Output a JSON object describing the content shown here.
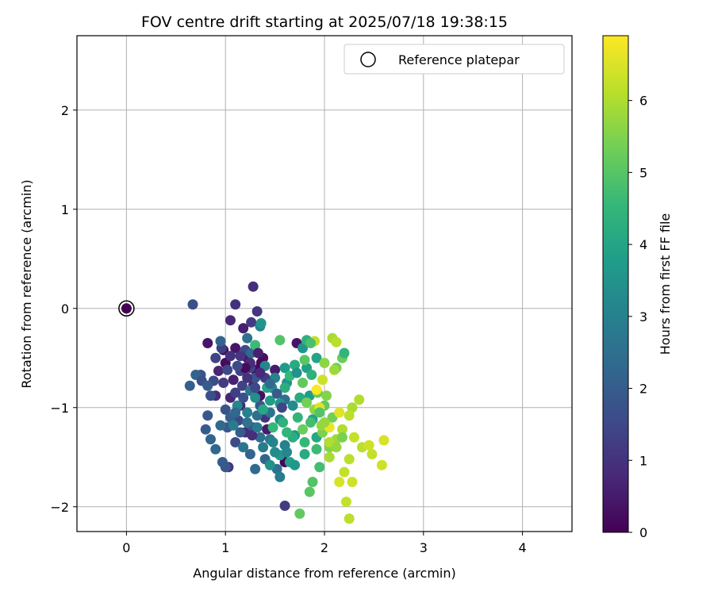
{
  "chart_data": {
    "type": "scatter",
    "title": "FOV centre drift starting at 2025/07/18 19:38:15",
    "xlabel": "Angular distance from reference (arcmin)",
    "ylabel": "Rotation from reference (arcmin)",
    "xlim": [
      -0.5,
      4.5
    ],
    "ylim": [
      -2.25,
      2.75
    ],
    "xticks": [
      0,
      1,
      2,
      3,
      4
    ],
    "xtick_labels": [
      "0",
      "1",
      "2",
      "3",
      "4"
    ],
    "yticks": [
      -2,
      -1,
      0,
      1,
      2
    ],
    "ytick_labels": [
      "−2",
      "−1",
      "0",
      "1",
      "2"
    ],
    "grid": true,
    "legend": {
      "position": "upper right",
      "entries": [
        "Reference platepar"
      ]
    },
    "reference_point": {
      "label": "Reference platepar",
      "x": 0,
      "y": 0
    },
    "colorbar": {
      "label": "Hours from first FF file",
      "colormap": "viridis",
      "range": [
        0,
        6.9
      ],
      "ticks": [
        0,
        1,
        2,
        3,
        4,
        5,
        6
      ],
      "tick_labels": [
        "0",
        "1",
        "2",
        "3",
        "4",
        "5",
        "6"
      ]
    },
    "colormap_stops": [
      "#440154",
      "#482878",
      "#3e4989",
      "#31688e",
      "#26828e",
      "#1f9e89",
      "#35b779",
      "#6ece58",
      "#b5de2b",
      "#fde725"
    ],
    "points": [
      [
        0.0,
        0.0,
        0.0
      ],
      [
        0.98,
        -0.42,
        0.3
      ],
      [
        1.1,
        -0.4,
        0.4
      ],
      [
        1.22,
        -0.5,
        0.5
      ],
      [
        1.3,
        -0.62,
        0.2
      ],
      [
        1.08,
        -0.72,
        0.6
      ],
      [
        1.28,
        -0.78,
        0.7
      ],
      [
        1.35,
        -0.88,
        0.3
      ],
      [
        1.5,
        -0.62,
        0.5
      ],
      [
        1.6,
        -1.55,
        0.1
      ],
      [
        1.72,
        -0.35,
        0.4
      ],
      [
        1.05,
        -0.12,
        0.8
      ],
      [
        1.28,
        0.22,
        0.9
      ],
      [
        1.1,
        0.04,
        1.0
      ],
      [
        1.32,
        -0.03,
        1.1
      ],
      [
        1.18,
        -0.2,
        0.6
      ],
      [
        1.26,
        -0.14,
        1.2
      ],
      [
        0.82,
        -0.35,
        0.4
      ],
      [
        1.0,
        -0.55,
        0.2
      ],
      [
        0.93,
        -0.63,
        0.7
      ],
      [
        1.15,
        -0.98,
        0.8
      ],
      [
        1.03,
        -1.6,
        1.1
      ],
      [
        1.6,
        -1.99,
        1.2
      ],
      [
        1.2,
        -1.25,
        0.9
      ],
      [
        1.4,
        -1.1,
        1.0
      ],
      [
        0.9,
        -0.88,
        0.9
      ],
      [
        1.05,
        -0.9,
        0.7
      ],
      [
        1.38,
        -0.5,
        0.3
      ],
      [
        1.36,
        -0.55,
        0.15
      ],
      [
        1.42,
        -1.22,
        0.5
      ],
      [
        0.96,
        -0.4,
        1.3
      ],
      [
        0.9,
        -0.5,
        1.4
      ],
      [
        1.02,
        -0.62,
        1.5
      ],
      [
        0.88,
        -0.73,
        1.6
      ],
      [
        1.17,
        -0.78,
        1.4
      ],
      [
        0.85,
        -0.88,
        1.7
      ],
      [
        1.0,
        -1.02,
        1.8
      ],
      [
        0.82,
        -1.08,
        1.9
      ],
      [
        1.13,
        -1.13,
        1.5
      ],
      [
        0.8,
        -1.22,
        2.0
      ],
      [
        1.02,
        -1.2,
        1.9
      ],
      [
        1.1,
        -1.35,
        1.6
      ],
      [
        0.75,
        -0.67,
        1.8
      ],
      [
        0.7,
        -0.67,
        2.2
      ],
      [
        0.76,
        -0.73,
        1.7
      ],
      [
        0.82,
        -0.78,
        2.0
      ],
      [
        0.64,
        -0.78,
        2.1
      ],
      [
        0.67,
        0.04,
        1.7
      ],
      [
        1.2,
        -0.42,
        1.6
      ],
      [
        1.15,
        -0.63,
        1.3
      ],
      [
        1.25,
        -0.6,
        1.4
      ],
      [
        1.3,
        -0.7,
        1.8
      ],
      [
        1.18,
        -0.9,
        1.7
      ],
      [
        1.35,
        -0.98,
        1.9
      ],
      [
        1.05,
        -1.1,
        2.1
      ],
      [
        1.15,
        -1.25,
        2.0
      ],
      [
        1.28,
        -1.2,
        1.8
      ],
      [
        0.85,
        -1.32,
        2.2
      ],
      [
        0.9,
        -1.42,
        2.3
      ],
      [
        0.97,
        -1.55,
        2.0
      ],
      [
        1.0,
        -1.6,
        1.9
      ],
      [
        1.25,
        -1.47,
        2.2
      ],
      [
        1.3,
        -1.62,
        2.4
      ],
      [
        1.32,
        -1.08,
        2.5
      ],
      [
        1.26,
        -0.45,
        2.3
      ],
      [
        1.22,
        -0.3,
        2.6
      ],
      [
        1.25,
        -0.83,
        2.7
      ],
      [
        1.45,
        -1.32,
        2.8
      ],
      [
        1.45,
        -1.05,
        2.6
      ],
      [
        1.38,
        -1.4,
        2.9
      ],
      [
        0.95,
        -0.33,
        2.2
      ],
      [
        1.6,
        -0.92,
        2.5
      ],
      [
        1.52,
        -1.62,
        2.6
      ],
      [
        1.55,
        -1.7,
        2.9
      ],
      [
        1.6,
        -1.38,
        3.0
      ],
      [
        1.35,
        -0.18,
        3.1
      ],
      [
        1.36,
        -0.15,
        3.6
      ],
      [
        1.4,
        -0.58,
        3.2
      ],
      [
        1.47,
        -0.8,
        3.3
      ],
      [
        1.55,
        -1.12,
        3.4
      ],
      [
        1.62,
        -0.75,
        3.5
      ],
      [
        1.68,
        -0.98,
        3.3
      ],
      [
        1.7,
        -1.28,
        3.6
      ],
      [
        1.48,
        -1.35,
        3.1
      ],
      [
        1.55,
        -1.48,
        3.7
      ],
      [
        1.6,
        -0.6,
        3.8
      ],
      [
        1.78,
        -0.4,
        3.6
      ],
      [
        1.82,
        -0.6,
        3.9
      ],
      [
        1.85,
        -0.88,
        3.8
      ],
      [
        1.88,
        -1.12,
        4.0
      ],
      [
        1.92,
        -1.3,
        4.1
      ],
      [
        1.8,
        -1.47,
        4.2
      ],
      [
        1.65,
        -1.55,
        3.9
      ],
      [
        1.7,
        -1.58,
        3.7
      ],
      [
        1.75,
        -0.9,
        4.2
      ],
      [
        1.55,
        -0.96,
        3.6
      ],
      [
        1.68,
        -1.3,
        4.3
      ],
      [
        1.87,
        -0.67,
        4.4
      ],
      [
        1.92,
        -0.5,
        4.0
      ],
      [
        1.73,
        -1.1,
        4.5
      ],
      [
        1.8,
        -1.35,
        4.6
      ],
      [
        1.58,
        -1.15,
        4.4
      ],
      [
        1.62,
        -1.25,
        4.5
      ],
      [
        1.92,
        -1.42,
        4.7
      ],
      [
        1.95,
        -1.6,
        4.8
      ],
      [
        1.88,
        -1.75,
        5.0
      ],
      [
        1.85,
        -1.85,
        5.1
      ],
      [
        1.75,
        -2.07,
        5.2
      ],
      [
        1.55,
        -0.32,
        5.0
      ],
      [
        1.8,
        -0.52,
        5.1
      ],
      [
        1.78,
        -0.75,
        5.2
      ],
      [
        1.93,
        -0.85,
        5.3
      ],
      [
        2.0,
        -0.98,
        5.2
      ],
      [
        2.08,
        -1.1,
        5.4
      ],
      [
        1.98,
        -1.25,
        5.5
      ],
      [
        2.05,
        -1.4,
        5.6
      ],
      [
        2.18,
        -0.5,
        5.3
      ],
      [
        2.12,
        -0.6,
        5.4
      ],
      [
        2.2,
        -0.45,
        4.5
      ],
      [
        2.02,
        -0.88,
        5.6
      ],
      [
        1.9,
        -1.02,
        5.7
      ],
      [
        1.97,
        -1.18,
        5.8
      ],
      [
        2.12,
        -1.32,
        5.9
      ],
      [
        2.28,
        -1.0,
        6.0
      ],
      [
        2.35,
        -0.92,
        6.1
      ],
      [
        2.25,
        -1.08,
        6.2
      ],
      [
        2.18,
        -1.22,
        6.1
      ],
      [
        2.3,
        -1.3,
        6.3
      ],
      [
        2.38,
        -1.4,
        6.2
      ],
      [
        2.45,
        -1.38,
        6.4
      ],
      [
        2.48,
        -1.47,
        6.3
      ],
      [
        2.6,
        -1.33,
        6.5
      ],
      [
        2.58,
        -1.58,
        6.4
      ],
      [
        2.25,
        -1.52,
        6.2
      ],
      [
        2.2,
        -1.65,
        6.3
      ],
      [
        2.15,
        -1.75,
        6.5
      ],
      [
        2.28,
        -1.75,
        6.4
      ],
      [
        2.22,
        -1.95,
        6.3
      ],
      [
        2.25,
        -2.12,
        6.2
      ],
      [
        2.05,
        -1.35,
        6.1
      ],
      [
        1.95,
        -1.0,
        6.6
      ],
      [
        1.92,
        -0.82,
        6.9
      ],
      [
        2.08,
        -0.3,
        6.0
      ],
      [
        2.12,
        -0.34,
        6.2
      ],
      [
        2.0,
        -0.55,
        5.7
      ],
      [
        2.1,
        -0.62,
        5.9
      ],
      [
        1.9,
        -0.33,
        6.3
      ],
      [
        1.98,
        -0.72,
        6.4
      ],
      [
        2.05,
        -1.2,
        6.7
      ],
      [
        2.15,
        -1.05,
        6.6
      ],
      [
        1.82,
        -0.32,
        4.4
      ],
      [
        1.86,
        -0.35,
        4.9
      ],
      [
        1.3,
        -0.37,
        4.7
      ],
      [
        1.7,
        -0.57,
        4.2
      ],
      [
        1.65,
        -0.68,
        4.6
      ],
      [
        1.42,
        -0.8,
        4.0
      ],
      [
        1.45,
        -0.93,
        3.8
      ],
      [
        1.38,
        -1.02,
        4.1
      ],
      [
        1.6,
        -0.8,
        4.3
      ],
      [
        1.72,
        -0.65,
        3.5
      ],
      [
        1.5,
        -0.7,
        3.1
      ],
      [
        1.3,
        -0.9,
        3.4
      ],
      [
        1.22,
        -1.05,
        3.0
      ],
      [
        1.12,
        -0.98,
        3.2
      ],
      [
        1.08,
        -1.18,
        2.9
      ],
      [
        1.18,
        -1.4,
        2.7
      ],
      [
        1.35,
        -1.3,
        2.5
      ],
      [
        1.4,
        -1.52,
        2.2
      ],
      [
        1.5,
        -1.45,
        3.3
      ],
      [
        1.45,
        -1.58,
        3.5
      ],
      [
        1.62,
        -1.45,
        3.2
      ],
      [
        1.48,
        -1.2,
        4.6
      ],
      [
        1.82,
        -0.95,
        5.4
      ],
      [
        1.95,
        -1.05,
        5.0
      ],
      [
        2.0,
        -1.15,
        5.8
      ],
      [
        2.05,
        -1.5,
        6.0
      ],
      [
        2.12,
        -1.4,
        5.8
      ],
      [
        2.18,
        -1.3,
        5.5
      ],
      [
        1.86,
        -1.15,
        4.8
      ],
      [
        1.78,
        -1.22,
        5.3
      ],
      [
        1.25,
        -0.55,
        0.9
      ],
      [
        1.33,
        -0.45,
        0.6
      ],
      [
        1.15,
        -0.48,
        1.1
      ],
      [
        1.4,
        -0.7,
        1.2
      ],
      [
        1.22,
        -0.7,
        1.0
      ],
      [
        1.1,
        -0.85,
        1.3
      ],
      [
        1.3,
        -0.8,
        1.5
      ],
      [
        1.2,
        -0.6,
        0.2
      ],
      [
        1.35,
        -0.65,
        0.8
      ],
      [
        0.98,
        -0.75,
        1.2
      ],
      [
        1.05,
        -0.48,
        1.0
      ],
      [
        1.12,
        -0.58,
        1.6
      ],
      [
        1.27,
        -1.28,
        0.9
      ],
      [
        1.57,
        -1.0,
        1.4
      ],
      [
        1.52,
        -0.86,
        2.0
      ],
      [
        1.45,
        -0.76,
        2.4
      ],
      [
        1.1,
        -1.05,
        2.3
      ],
      [
        0.95,
        -1.18,
        2.4
      ],
      [
        1.22,
        -1.15,
        2.6
      ],
      [
        1.32,
        -1.2,
        2.8
      ]
    ]
  }
}
